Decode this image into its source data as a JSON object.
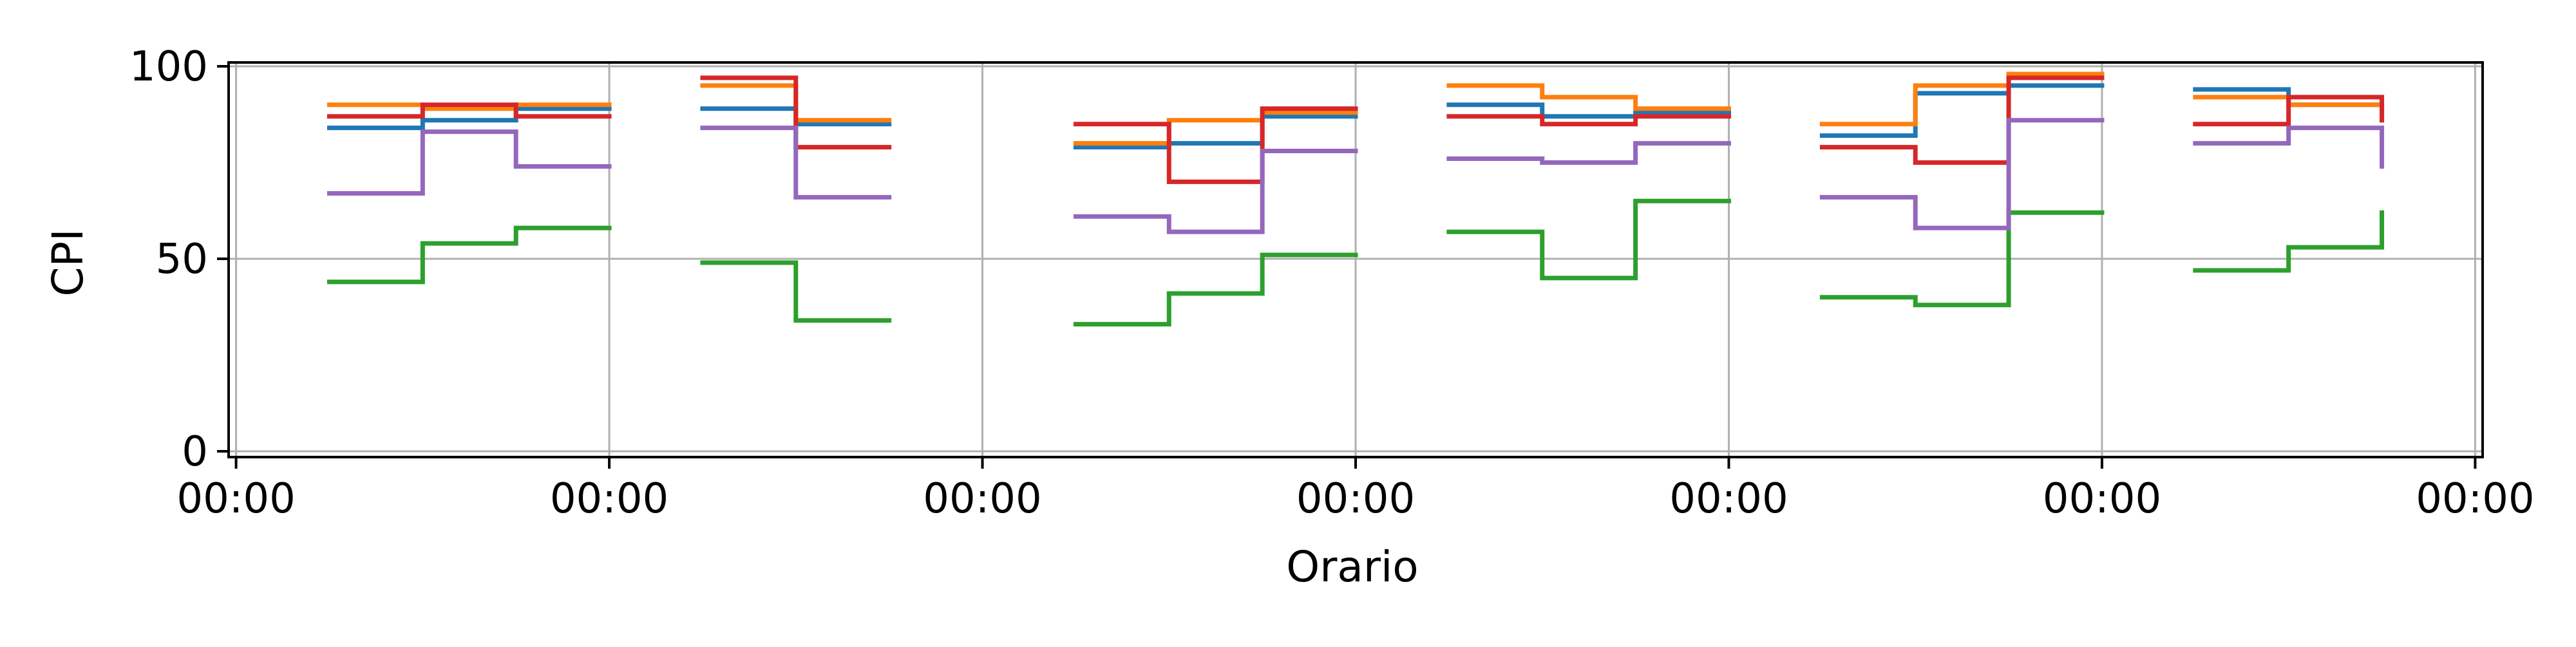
{
  "chart_data": {
    "type": "line",
    "drawstyle": "steps-post",
    "title": "",
    "xlabel": "Orario",
    "ylabel": "CPI",
    "ylim": [
      0,
      100
    ],
    "yticks": [
      0,
      50,
      100
    ],
    "xticks": [
      0,
      1,
      2,
      3,
      4,
      5,
      6
    ],
    "xtick_labels": [
      "00:00",
      "00:00",
      "00:00",
      "00:00",
      "00:00",
      "00:00",
      "00:00"
    ],
    "xlim": [
      -0.02,
      6.02
    ],
    "grid": true,
    "legend": false,
    "colors": [
      "#1f77b4",
      "#ff7f0e",
      "#2ca02c",
      "#d62728",
      "#9467bd"
    ],
    "series": [
      {
        "color": "#1f77b4",
        "segments": [
          {
            "x": [
              0.25,
              0.5,
              0.75,
              1.0
            ],
            "y": [
              84,
              86,
              89,
              89
            ]
          },
          {
            "x": [
              1.25,
              1.5,
              1.75
            ],
            "y": [
              89,
              85,
              85
            ]
          },
          {
            "x": [
              2.25,
              2.5,
              2.75,
              3.0
            ],
            "y": [
              79,
              80,
              87,
              87
            ]
          },
          {
            "x": [
              3.25,
              3.5,
              3.75,
              4.0
            ],
            "y": [
              90,
              87,
              88,
              88
            ]
          },
          {
            "x": [
              4.25,
              4.5,
              4.75,
              5.0
            ],
            "y": [
              82,
              93,
              95,
              95
            ]
          },
          {
            "x": [
              5.25,
              5.5,
              5.75
            ],
            "y": [
              94,
              90,
              86
            ]
          }
        ]
      },
      {
        "color": "#ff7f0e",
        "segments": [
          {
            "x": [
              0.25,
              0.5,
              0.75,
              1.0
            ],
            "y": [
              90,
              89,
              90,
              90
            ]
          },
          {
            "x": [
              1.25,
              1.5,
              1.75
            ],
            "y": [
              95,
              86,
              86
            ]
          },
          {
            "x": [
              2.25,
              2.5,
              2.75,
              3.0
            ],
            "y": [
              80,
              86,
              88,
              88
            ]
          },
          {
            "x": [
              3.25,
              3.5,
              3.75,
              4.0
            ],
            "y": [
              95,
              92,
              89,
              89
            ]
          },
          {
            "x": [
              4.25,
              4.5,
              4.75,
              5.0
            ],
            "y": [
              85,
              95,
              98,
              98
            ]
          },
          {
            "x": [
              5.25,
              5.5,
              5.75
            ],
            "y": [
              92,
              90,
              90
            ]
          }
        ]
      },
      {
        "color": "#2ca02c",
        "segments": [
          {
            "x": [
              0.25,
              0.5,
              0.75,
              1.0
            ],
            "y": [
              44,
              54,
              58,
              58
            ]
          },
          {
            "x": [
              1.25,
              1.5,
              1.75
            ],
            "y": [
              49,
              34,
              34
            ]
          },
          {
            "x": [
              2.25,
              2.5,
              2.75,
              3.0
            ],
            "y": [
              33,
              41,
              51,
              51
            ]
          },
          {
            "x": [
              3.25,
              3.5,
              3.75,
              4.0
            ],
            "y": [
              57,
              45,
              65,
              65
            ]
          },
          {
            "x": [
              4.25,
              4.5,
              4.75,
              5.0
            ],
            "y": [
              40,
              38,
              62,
              62
            ]
          },
          {
            "x": [
              5.25,
              5.5,
              5.75
            ],
            "y": [
              47,
              53,
              62
            ]
          }
        ]
      },
      {
        "color": "#d62728",
        "segments": [
          {
            "x": [
              0.25,
              0.5,
              0.75,
              1.0
            ],
            "y": [
              87,
              90,
              87,
              87
            ]
          },
          {
            "x": [
              1.25,
              1.5,
              1.75
            ],
            "y": [
              97,
              79,
              79
            ]
          },
          {
            "x": [
              2.25,
              2.5,
              2.75,
              3.0
            ],
            "y": [
              85,
              70,
              89,
              89
            ]
          },
          {
            "x": [
              3.25,
              3.5,
              3.75,
              4.0
            ],
            "y": [
              87,
              85,
              87,
              87
            ]
          },
          {
            "x": [
              4.25,
              4.5,
              4.75,
              5.0
            ],
            "y": [
              79,
              75,
              97,
              97
            ]
          },
          {
            "x": [
              5.25,
              5.5,
              5.75
            ],
            "y": [
              85,
              92,
              86
            ]
          }
        ]
      },
      {
        "color": "#9467bd",
        "segments": [
          {
            "x": [
              0.25,
              0.5,
              0.75,
              1.0
            ],
            "y": [
              67,
              83,
              74,
              74
            ]
          },
          {
            "x": [
              1.25,
              1.5,
              1.75
            ],
            "y": [
              84,
              66,
              66
            ]
          },
          {
            "x": [
              2.25,
              2.5,
              2.75,
              3.0
            ],
            "y": [
              61,
              57,
              78,
              78
            ]
          },
          {
            "x": [
              3.25,
              3.5,
              3.75,
              4.0
            ],
            "y": [
              76,
              75,
              80,
              80
            ]
          },
          {
            "x": [
              4.25,
              4.5,
              4.75,
              5.0
            ],
            "y": [
              66,
              58,
              86,
              86
            ]
          },
          {
            "x": [
              5.25,
              5.5,
              5.75
            ],
            "y": [
              80,
              84,
              74
            ]
          }
        ]
      }
    ]
  }
}
